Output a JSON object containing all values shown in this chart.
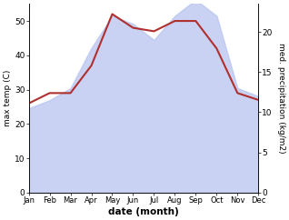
{
  "months": [
    "Jan",
    "Feb",
    "Mar",
    "Apr",
    "May",
    "Jun",
    "Jul",
    "Aug",
    "Sep",
    "Oct",
    "Nov",
    "Dec"
  ],
  "temp": [
    26,
    29,
    29,
    37,
    52,
    48,
    47,
    50,
    50,
    42,
    29,
    27
  ],
  "precip": [
    10.5,
    11.5,
    13,
    18,
    22,
    21,
    19,
    22,
    24,
    22,
    13,
    12
  ],
  "temp_color": "#b03030",
  "precip_fill_color": "#b8c4ee",
  "left_ylabel": "max temp (C)",
  "right_ylabel": "med. precipitation (kg/m2)",
  "xlabel": "date (month)",
  "left_ylim": [
    0,
    55
  ],
  "right_ylim": [
    0,
    23.5
  ],
  "left_yticks": [
    0,
    10,
    20,
    30,
    40,
    50
  ],
  "right_yticks": [
    0,
    5,
    10,
    15,
    20
  ],
  "bg_color": "#ffffff"
}
